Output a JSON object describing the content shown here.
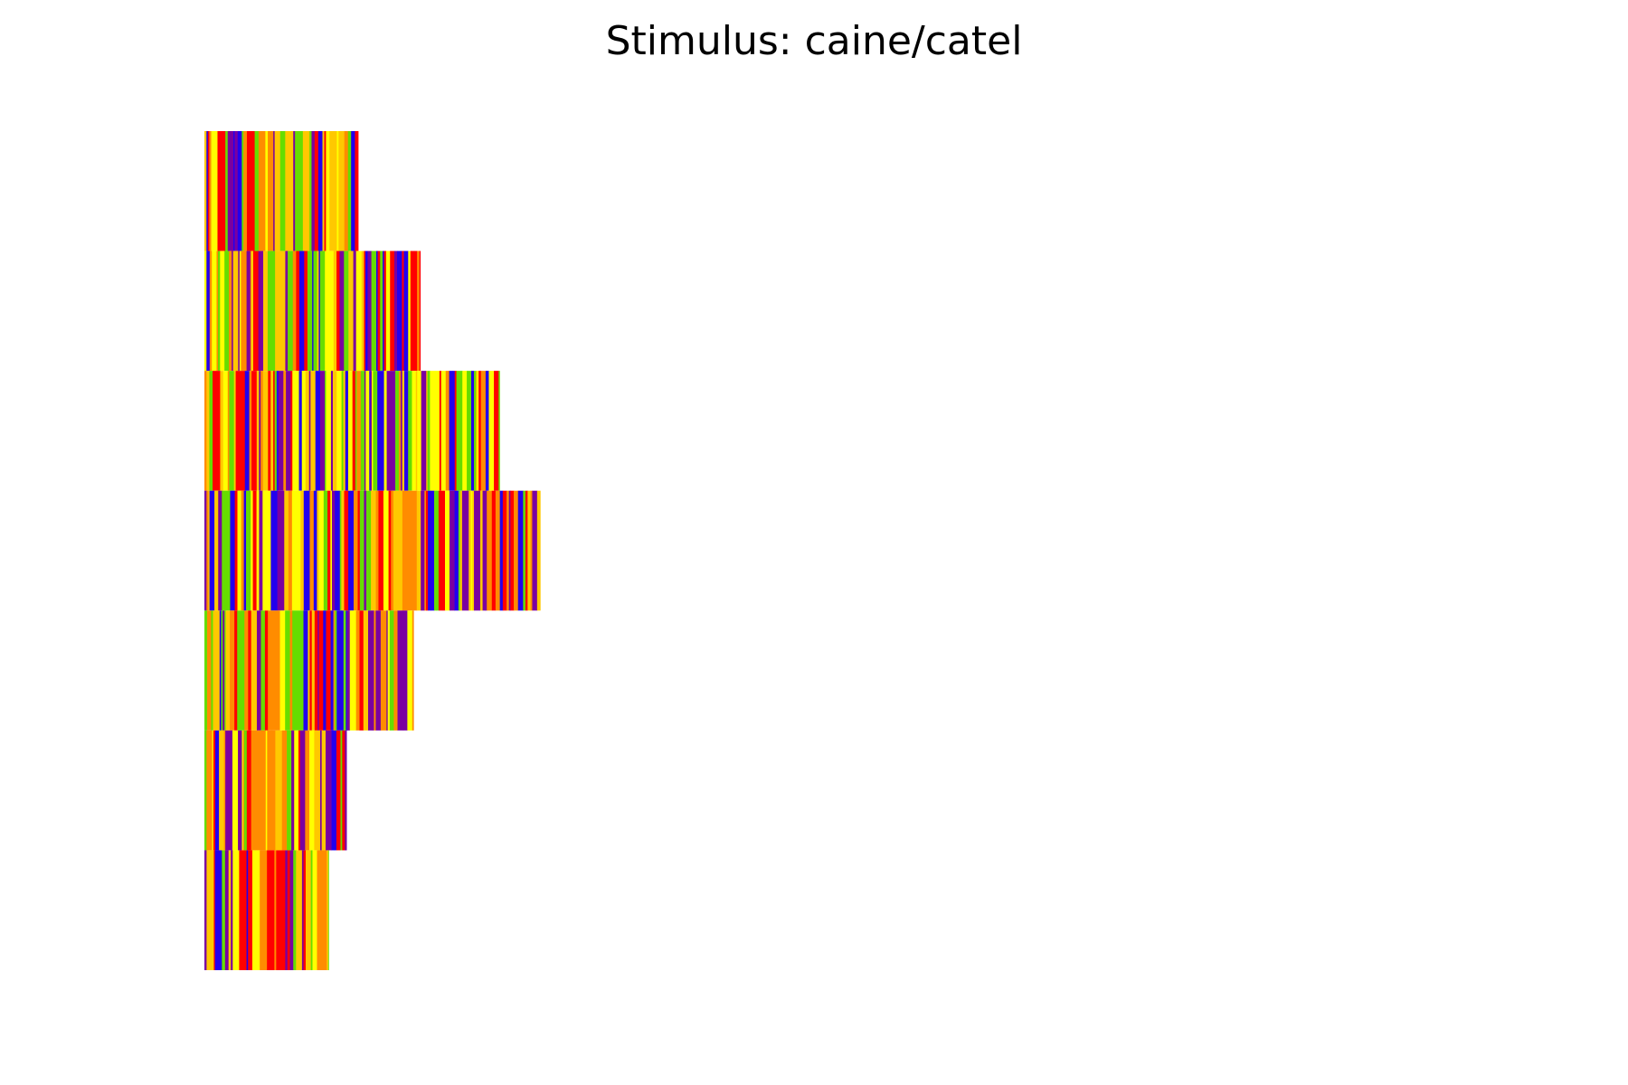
{
  "chart_data": {
    "type": "heatmap",
    "title": "Stimulus: caine/catel",
    "xlabel": "",
    "ylabel": "",
    "grid": false,
    "legend": "none",
    "axes_visible": false,
    "xlim": [
      0,
      1
    ],
    "ylim": [
      0,
      7
    ],
    "palette": [
      "#ff0000",
      "#ff8c00",
      "#ffc800",
      "#ffff00",
      "#66dd00",
      "#2200ee",
      "#7a00a0"
    ],
    "rows": [
      {
        "index": 1,
        "length": 0.125,
        "seed": 11
      },
      {
        "index": 2,
        "length": 0.1755,
        "seed": 23
      },
      {
        "index": 3,
        "length": 0.24,
        "seed": 37
      },
      {
        "index": 4,
        "length": 0.273,
        "seed": 41
      },
      {
        "index": 5,
        "length": 0.17,
        "seed": 53
      },
      {
        "index": 6,
        "length": 0.1155,
        "seed": 67
      },
      {
        "index": 7,
        "length": 0.101,
        "seed": 79
      }
    ]
  }
}
